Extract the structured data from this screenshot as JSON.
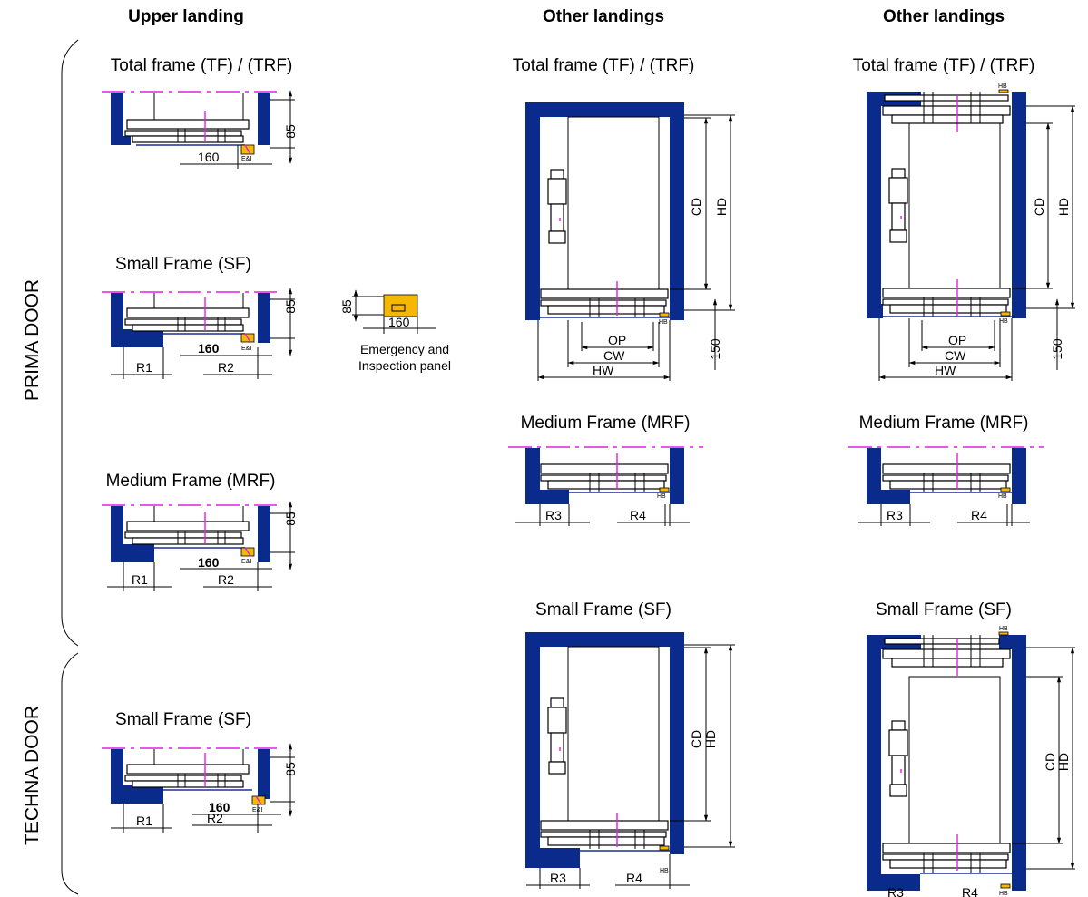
{
  "headers": {
    "upper": "Upper landing",
    "other_mid": "Other landings",
    "other_right": "Other landings"
  },
  "side_labels": {
    "prima": "PRIMA DOOR",
    "techna": "TECHNA DOOR"
  },
  "titles": {
    "upper_tf": "Total frame (TF) / (TRF)",
    "upper_sf": "Small Frame (SF)",
    "upper_mrf": "Medium Frame (MRF)",
    "upper_techna_sf": "Small Frame (SF)",
    "mid_tf": "Total frame (TF) / (TRF)",
    "mid_mrf": "Medium Frame (MRF)",
    "mid_sf": "Small Frame (SF)",
    "right_tf": "Total frame (TF) / (TRF)",
    "right_mrf": "Medium Frame (MRF)",
    "right_sf": "Small Frame (SF)"
  },
  "dims": {
    "d85": "85",
    "d160": "160",
    "d150": "150",
    "R1": "R1",
    "R2": "R2",
    "R3": "R3",
    "R4": "R4",
    "OP": "OP",
    "CW": "CW",
    "HW": "HW",
    "CD": "CD",
    "HD": "HD",
    "HB": "HB",
    "EI": "E&I"
  },
  "panel_caption": {
    "line1": "Emergency and",
    "line2": "Inspection panel"
  },
  "colors": {
    "wall": "#0a2a8c",
    "centerline": "#e020e0",
    "panel": "#f5b800"
  }
}
